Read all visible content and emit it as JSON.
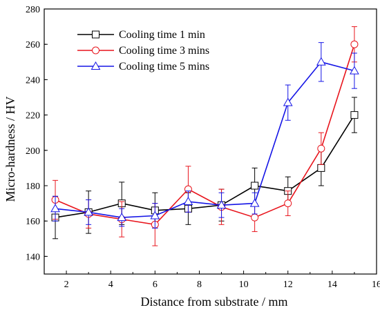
{
  "chart_data": {
    "type": "line",
    "title": "",
    "xlabel": "Distance from substrate / mm",
    "ylabel": "Micro-hardness / HV",
    "xlim": [
      1,
      16
    ],
    "ylim": [
      130,
      280
    ],
    "xticks": [
      2,
      4,
      6,
      8,
      10,
      12,
      14,
      16
    ],
    "yticks": [
      140,
      160,
      180,
      200,
      220,
      240,
      260,
      280
    ],
    "grid": false,
    "legend_position": "top-left",
    "x": [
      1.5,
      3,
      4.5,
      6,
      7.5,
      9,
      10.5,
      12,
      13.5,
      15
    ],
    "series": [
      {
        "name": "Cooling time 1 min",
        "color": "#000000",
        "marker": "square",
        "values": [
          162,
          165,
          170,
          166,
          167,
          169,
          180,
          177,
          190,
          220
        ],
        "errors": [
          12,
          12,
          12,
          10,
          9,
          9,
          10,
          8,
          10,
          10
        ]
      },
      {
        "name": "Cooling time 3 mins",
        "color": "#e8141c",
        "marker": "circle",
        "values": [
          172,
          164,
          161,
          158,
          178,
          168,
          162,
          170,
          201,
          260
        ],
        "errors": [
          11,
          8,
          10,
          12,
          13,
          10,
          8,
          7,
          9,
          10
        ]
      },
      {
        "name": "Cooling time 5 mins",
        "color": "#1414e6",
        "marker": "triangle",
        "values": [
          167,
          165,
          162,
          163,
          171,
          169,
          170,
          227,
          250,
          245
        ],
        "errors": [
          7,
          7,
          5,
          7,
          6,
          7,
          6,
          10,
          11,
          10
        ]
      }
    ]
  }
}
